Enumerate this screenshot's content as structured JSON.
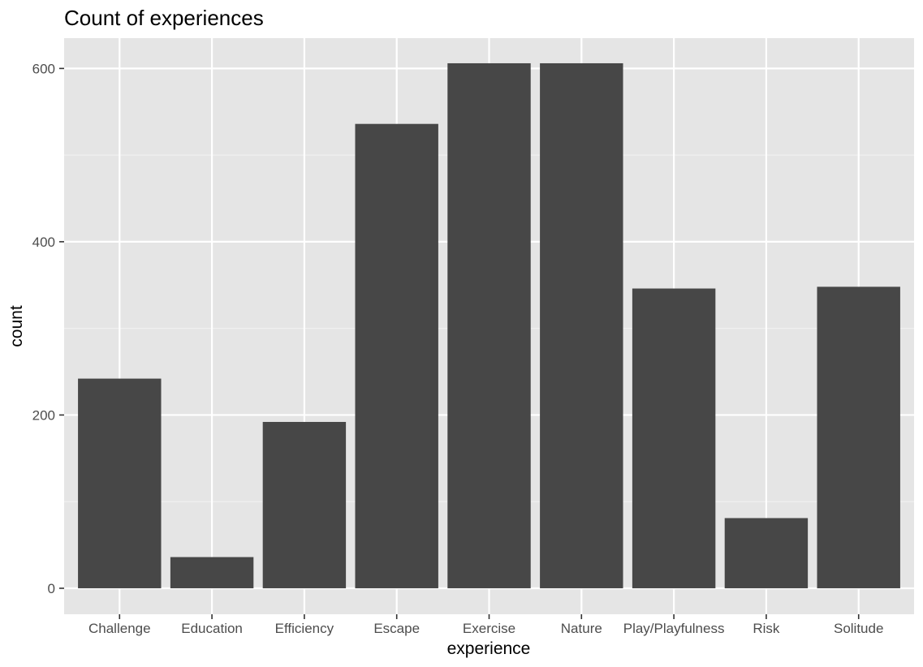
{
  "chart_data": {
    "type": "bar",
    "title": "Count of experiences",
    "xlabel": "experience",
    "ylabel": "count",
    "categories": [
      "Challenge",
      "Education",
      "Efficiency",
      "Escape",
      "Exercise",
      "Nature",
      "Play/Playfulness",
      "Risk",
      "Solitude"
    ],
    "values": [
      242,
      36,
      192,
      536,
      606,
      606,
      346,
      81,
      348
    ],
    "ylim": [
      -30,
      635
    ],
    "yticks": [
      0,
      200,
      400,
      600
    ],
    "yticks_minor": [
      100,
      300,
      500
    ],
    "grid": true,
    "legend": "none",
    "colors": {
      "bar": "#474747",
      "panel": "#e5e5e5",
      "grid_major": "#ffffff",
      "grid_minor": "#f2f2f2",
      "tick_mark": "#333333",
      "tick_label": "#4d4d4d"
    }
  }
}
